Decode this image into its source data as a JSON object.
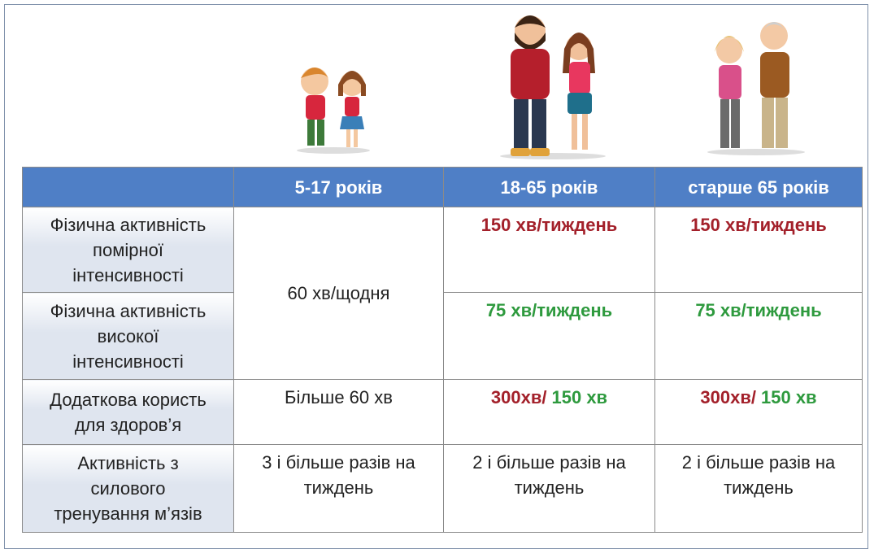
{
  "table": {
    "header_color": "#4f7fc6",
    "label_color": "#dfe5ef",
    "columns": [
      "5-17 років",
      "18-65 років",
      "старше 65 років"
    ],
    "rows": [
      {
        "label": [
          "Фізична активність",
          "помірної",
          "інтенсивності"
        ],
        "cells": [
          {
            "lines": [
              "60 хв/щодня"
            ],
            "rowspan": 2
          },
          {
            "lines": [
              "150 хв/тиждень"
            ],
            "color": "#a3202a",
            "bold": true
          },
          {
            "lines": [
              "150 хв/тиждень"
            ],
            "color": "#a3202a",
            "bold": true
          }
        ]
      },
      {
        "label": [
          "Фізична активність",
          "високої",
          "інтенсивності"
        ],
        "cells": [
          {
            "lines": [
              "75 хв/тиждень"
            ],
            "color": "#2e9a3e",
            "bold": true
          },
          {
            "lines": [
              "75 хв/тиждень"
            ],
            "color": "#2e9a3e",
            "bold": true
          }
        ]
      },
      {
        "label": [
          "Додаткова користь",
          "для здоров’я"
        ],
        "cells": [
          {
            "lines": [
              "Більше 60 хв"
            ]
          },
          {
            "runs": [
              {
                "text": "300хв/",
                "color": "#a3202a"
              },
              {
                "text": "150 хв",
                "color": "#2e9a3e"
              }
            ],
            "bold": true
          },
          {
            "runs": [
              {
                "text": "300хв/",
                "color": "#a3202a"
              },
              {
                "text": "150 хв",
                "color": "#2e9a3e"
              }
            ],
            "bold": true
          }
        ]
      },
      {
        "label": [
          "Активність з",
          "силового",
          "тренування м’язів"
        ],
        "cells": [
          {
            "lines": [
              "3 і більше разів на",
              "тиждень"
            ]
          },
          {
            "lines": [
              "2 і більше разів на",
              "тиждень"
            ]
          },
          {
            "lines": [
              "2 і більше разів на",
              "тиждень"
            ]
          }
        ]
      }
    ]
  }
}
